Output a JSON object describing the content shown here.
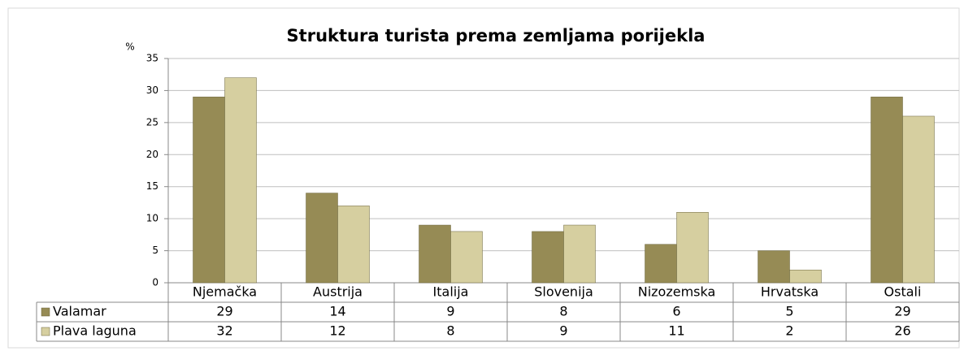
{
  "chart_data": {
    "type": "bar",
    "title": "Struktura turista prema zemljama porijekla",
    "y_label": "%",
    "categories": [
      "Njemačka",
      "Austrija",
      "Italija",
      "Slovenija",
      "Nizozemska",
      "Hrvatska",
      "Ostali"
    ],
    "series": [
      {
        "name": "Valamar",
        "color": "#968b55",
        "values": [
          29,
          14,
          9,
          8,
          6,
          5,
          29
        ]
      },
      {
        "name": "Plava laguna",
        "color": "#d6cfa0",
        "values": [
          32,
          12,
          8,
          9,
          11,
          2,
          26
        ]
      }
    ],
    "ylim": [
      0,
      35
    ],
    "yticks": [
      0,
      5,
      10,
      15,
      20,
      25,
      30,
      35
    ],
    "grid": true,
    "data_table": true
  }
}
